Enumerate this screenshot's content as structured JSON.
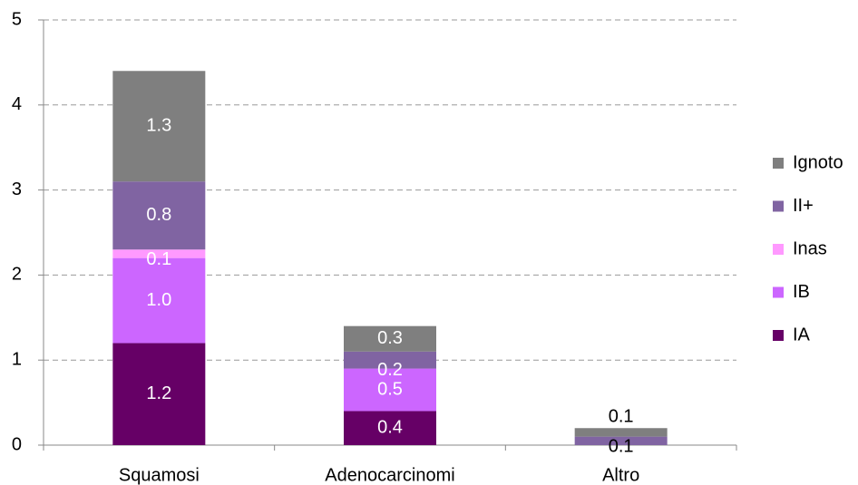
{
  "chart_data": {
    "type": "stacked-bar",
    "categories": [
      "Squamosi",
      "Adenocarcinomi",
      "Altro"
    ],
    "series": [
      {
        "name": "IA",
        "color": "#660066",
        "values": [
          1.2,
          0.4,
          0
        ],
        "value_labels": [
          "1.2",
          "0.4",
          null
        ]
      },
      {
        "name": "IB",
        "color": "#cc66ff",
        "values": [
          1.0,
          0.5,
          0
        ],
        "value_labels": [
          "1.0",
          "0.5",
          null
        ]
      },
      {
        "name": "Inas",
        "color": "#ff99ff",
        "values": [
          0.1,
          0,
          0
        ],
        "value_labels": [
          "0.1",
          null,
          null
        ]
      },
      {
        "name": "II+",
        "color": "#8064a2",
        "values": [
          0.8,
          0.2,
          0.1
        ],
        "value_labels": [
          "0.8",
          "0.2",
          "0.1"
        ]
      },
      {
        "name": "Ignoto",
        "color": "#7f7f7f",
        "values": [
          1.3,
          0.3,
          0.1
        ],
        "value_labels": [
          "1.3",
          "0.3",
          "0.1"
        ]
      }
    ],
    "ylim": [
      0,
      5
    ],
    "yticks": [
      0,
      1,
      2,
      3,
      4,
      5
    ],
    "grid": true,
    "legend": "right"
  }
}
